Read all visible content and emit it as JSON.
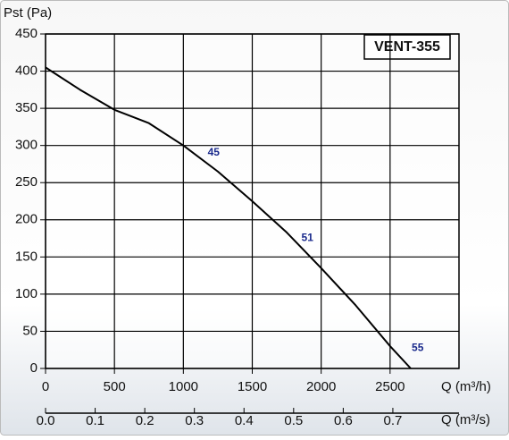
{
  "chart_data": {
    "type": "line",
    "title": "VENT-355",
    "ylabel": "Pst (Pa)",
    "xlabel": "Q (m³/h)",
    "x2label": "Q (m³/s)",
    "x": [
      0,
      250,
      500,
      750,
      1000,
      1250,
      1500,
      1750,
      2000,
      2250,
      2500,
      2650
    ],
    "series": [
      {
        "name": "VENT-355",
        "color": "#000000",
        "values": [
          405,
          375,
          348,
          330,
          300,
          265,
          225,
          183,
          135,
          85,
          30,
          0
        ]
      }
    ],
    "xlim": [
      0,
      3000
    ],
    "xticks": [
      0,
      500,
      1000,
      1500,
      2000,
      2500
    ],
    "ylim": [
      0,
      450
    ],
    "yticks": [
      0,
      50,
      100,
      150,
      200,
      250,
      300,
      350,
      400,
      450
    ],
    "x2lim": [
      0,
      0.8333
    ],
    "x2ticks": [
      {
        "value": 0,
        "label": "0.0"
      },
      0.1,
      0.2,
      0.3,
      0.4,
      0.5,
      0.6,
      0.7
    ],
    "annotations": [
      {
        "text": "45",
        "x": 1220,
        "y": 290
      },
      {
        "text": "51",
        "x": 1900,
        "y": 175
      },
      {
        "text": "55",
        "x": 2700,
        "y": 27
      }
    ],
    "annotation_color": "#1a2a8c",
    "grid": true
  }
}
